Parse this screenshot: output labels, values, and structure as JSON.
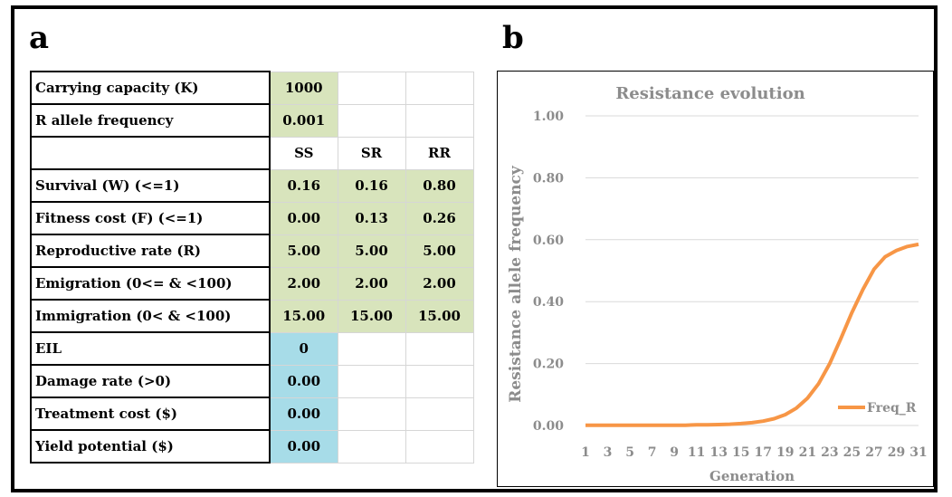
{
  "panels": {
    "a": "a",
    "b": "b"
  },
  "table": {
    "rows": [
      {
        "label": "Carrying capacity (K)",
        "cells": [
          "1000",
          "",
          ""
        ],
        "fills": [
          "g",
          "",
          ""
        ]
      },
      {
        "label": "R allele frequency",
        "cells": [
          "0.001",
          "",
          ""
        ],
        "fills": [
          "g",
          "",
          ""
        ]
      },
      {
        "label": "",
        "cells": [
          "SS",
          "SR",
          "RR"
        ],
        "fills": [
          "",
          "",
          ""
        ]
      },
      {
        "label": "Survival (W) (<=1)",
        "cells": [
          "0.16",
          "0.16",
          "0.80"
        ],
        "fills": [
          "g",
          "g",
          "g"
        ]
      },
      {
        "label": "Fitness cost (F) (<=1)",
        "cells": [
          "0.00",
          "0.13",
          "0.26"
        ],
        "fills": [
          "g",
          "g",
          "g"
        ]
      },
      {
        "label": "Reproductive rate (R)",
        "cells": [
          "5.00",
          "5.00",
          "5.00"
        ],
        "fills": [
          "g",
          "g",
          "g"
        ]
      },
      {
        "label": "Emigration (0<= & <100)",
        "cells": [
          "2.00",
          "2.00",
          "2.00"
        ],
        "fills": [
          "g",
          "g",
          "g"
        ]
      },
      {
        "label": "Immigration (0< & <100)",
        "cells": [
          "15.00",
          "15.00",
          "15.00"
        ],
        "fills": [
          "g",
          "g",
          "g"
        ]
      },
      {
        "label": "EIL",
        "cells": [
          "0",
          "",
          ""
        ],
        "fills": [
          "bl",
          "",
          ""
        ]
      },
      {
        "label": "Damage rate (>0)",
        "cells": [
          "0.00",
          "",
          ""
        ],
        "fills": [
          "bl",
          "",
          ""
        ]
      },
      {
        "label": "Treatment cost ($)",
        "cells": [
          "0.00",
          "",
          ""
        ],
        "fills": [
          "bl",
          "",
          ""
        ]
      },
      {
        "label": "Yield potential ($)",
        "cells": [
          "0.00",
          "",
          ""
        ],
        "fills": [
          "bl",
          "",
          ""
        ]
      }
    ]
  },
  "colors": {
    "input_green": "#d8e4bc",
    "input_blue": "#a7dce8",
    "line": "#f79646",
    "grid": "#d9d9d9",
    "text_gray": "#8c8c8c"
  },
  "chart_data": {
    "type": "line",
    "title": "Resistance evolution",
    "xlabel": "Generation",
    "ylabel": "Resistance allele frequency",
    "x": [
      1,
      2,
      3,
      4,
      5,
      6,
      7,
      8,
      9,
      10,
      11,
      12,
      13,
      14,
      15,
      16,
      17,
      18,
      19,
      20,
      21,
      22,
      23,
      24,
      25,
      26,
      27,
      28,
      29,
      30,
      31
    ],
    "x_tick_labels": [
      "1",
      "3",
      "5",
      "7",
      "9",
      "11",
      "13",
      "15",
      "17",
      "19",
      "21",
      "23",
      "25",
      "27",
      "29",
      "31"
    ],
    "y_ticks": [
      "0.00",
      "0.20",
      "0.40",
      "0.60",
      "0.80",
      "1.00"
    ],
    "ylim": [
      0,
      1.0
    ],
    "grid": "horizontal",
    "legend_position": "right",
    "series": [
      {
        "name": "Freq_R",
        "values": [
          0.001,
          0.001,
          0.001,
          0.001,
          0.001,
          0.001,
          0.001,
          0.001,
          0.001,
          0.001,
          0.002,
          0.002,
          0.003,
          0.004,
          0.006,
          0.009,
          0.014,
          0.022,
          0.035,
          0.056,
          0.088,
          0.135,
          0.2,
          0.28,
          0.365,
          0.44,
          0.505,
          0.545,
          0.565,
          0.578,
          0.585
        ]
      }
    ]
  }
}
